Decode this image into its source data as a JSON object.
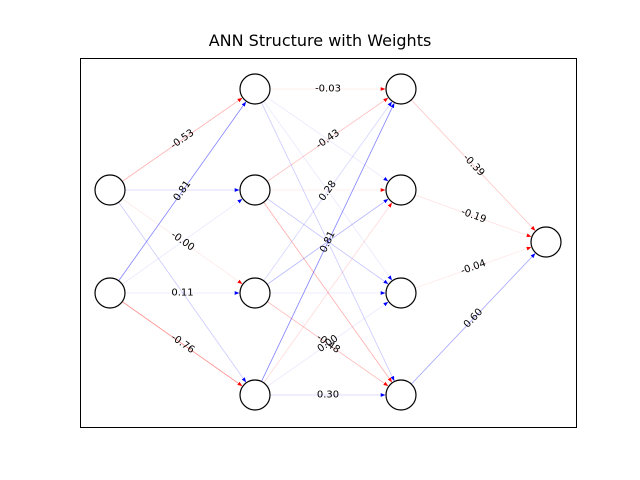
{
  "title": "ANN Structure with Weights",
  "colors": {
    "positive": "#0000ff",
    "negative": "#ff0000",
    "node_stroke": "#000000"
  },
  "layers": [
    2,
    4,
    4,
    1
  ],
  "weights": [
    {
      "from": [
        0,
        0
      ],
      "to": [
        1,
        0
      ],
      "label": "-0.53",
      "value": -0.53
    },
    {
      "from": [
        0,
        0
      ],
      "to": [
        1,
        1
      ],
      "label": "",
      "value": 0.3
    },
    {
      "from": [
        0,
        0
      ],
      "to": [
        1,
        2
      ],
      "label": "-0.00",
      "value": -0.004
    },
    {
      "from": [
        0,
        0
      ],
      "to": [
        1,
        3
      ],
      "label": "",
      "value": 0.35
    },
    {
      "from": [
        0,
        1
      ],
      "to": [
        1,
        0
      ],
      "label": "0.81",
      "value": 0.81
    },
    {
      "from": [
        0,
        1
      ],
      "to": [
        1,
        1
      ],
      "label": "",
      "value": 0.02
    },
    {
      "from": [
        0,
        1
      ],
      "to": [
        1,
        2
      ],
      "label": "0.11",
      "value": 0.11
    },
    {
      "from": [
        0,
        1
      ],
      "to": [
        1,
        3
      ],
      "label": "-0.76",
      "value": -0.76
    },
    {
      "from": [
        1,
        0
      ],
      "to": [
        2,
        0
      ],
      "label": "-0.03",
      "value": -0.03
    },
    {
      "from": [
        1,
        0
      ],
      "to": [
        2,
        1
      ],
      "label": "",
      "value": 0.05
    },
    {
      "from": [
        1,
        0
      ],
      "to": [
        2,
        2
      ],
      "label": "",
      "value": 0.12
    },
    {
      "from": [
        1,
        0
      ],
      "to": [
        2,
        3
      ],
      "label": "",
      "value": 0.35
    },
    {
      "from": [
        1,
        1
      ],
      "to": [
        2,
        0
      ],
      "label": "-0.43",
      "value": -0.43
    },
    {
      "from": [
        1,
        1
      ],
      "to": [
        2,
        1
      ],
      "label": "",
      "value": -0.1
    },
    {
      "from": [
        1,
        1
      ],
      "to": [
        2,
        2
      ],
      "label": "",
      "value": 0.4
    },
    {
      "from": [
        1,
        1
      ],
      "to": [
        2,
        3
      ],
      "label": "",
      "value": -0.55
    },
    {
      "from": [
        1,
        2
      ],
      "to": [
        2,
        0
      ],
      "label": "0.28",
      "value": 0.28
    },
    {
      "from": [
        1,
        2
      ],
      "to": [
        2,
        1
      ],
      "label": "",
      "value": 0.5
    },
    {
      "from": [
        1,
        2
      ],
      "to": [
        2,
        2
      ],
      "label": "",
      "value": 0.08
    },
    {
      "from": [
        1,
        2
      ],
      "to": [
        2,
        3
      ],
      "label": "-0.48",
      "value": -0.48
    },
    {
      "from": [
        1,
        3
      ],
      "to": [
        2,
        0
      ],
      "label": "0.81",
      "value": 0.81
    },
    {
      "from": [
        1,
        3
      ],
      "to": [
        2,
        1
      ],
      "label": "",
      "value": -0.25
    },
    {
      "from": [
        1,
        3
      ],
      "to": [
        2,
        2
      ],
      "label": "0.00",
      "value": 0.002
    },
    {
      "from": [
        1,
        3
      ],
      "to": [
        2,
        3
      ],
      "label": "0.30",
      "value": 0.3
    },
    {
      "from": [
        2,
        0
      ],
      "to": [
        3,
        0
      ],
      "label": "-0.39",
      "value": -0.39
    },
    {
      "from": [
        2,
        1
      ],
      "to": [
        3,
        0
      ],
      "label": "-0.19",
      "value": -0.19
    },
    {
      "from": [
        2,
        2
      ],
      "to": [
        3,
        0
      ],
      "label": "-0.04",
      "value": -0.04
    },
    {
      "from": [
        2,
        3
      ],
      "to": [
        3,
        0
      ],
      "label": "0.60",
      "value": 0.6
    }
  ]
}
